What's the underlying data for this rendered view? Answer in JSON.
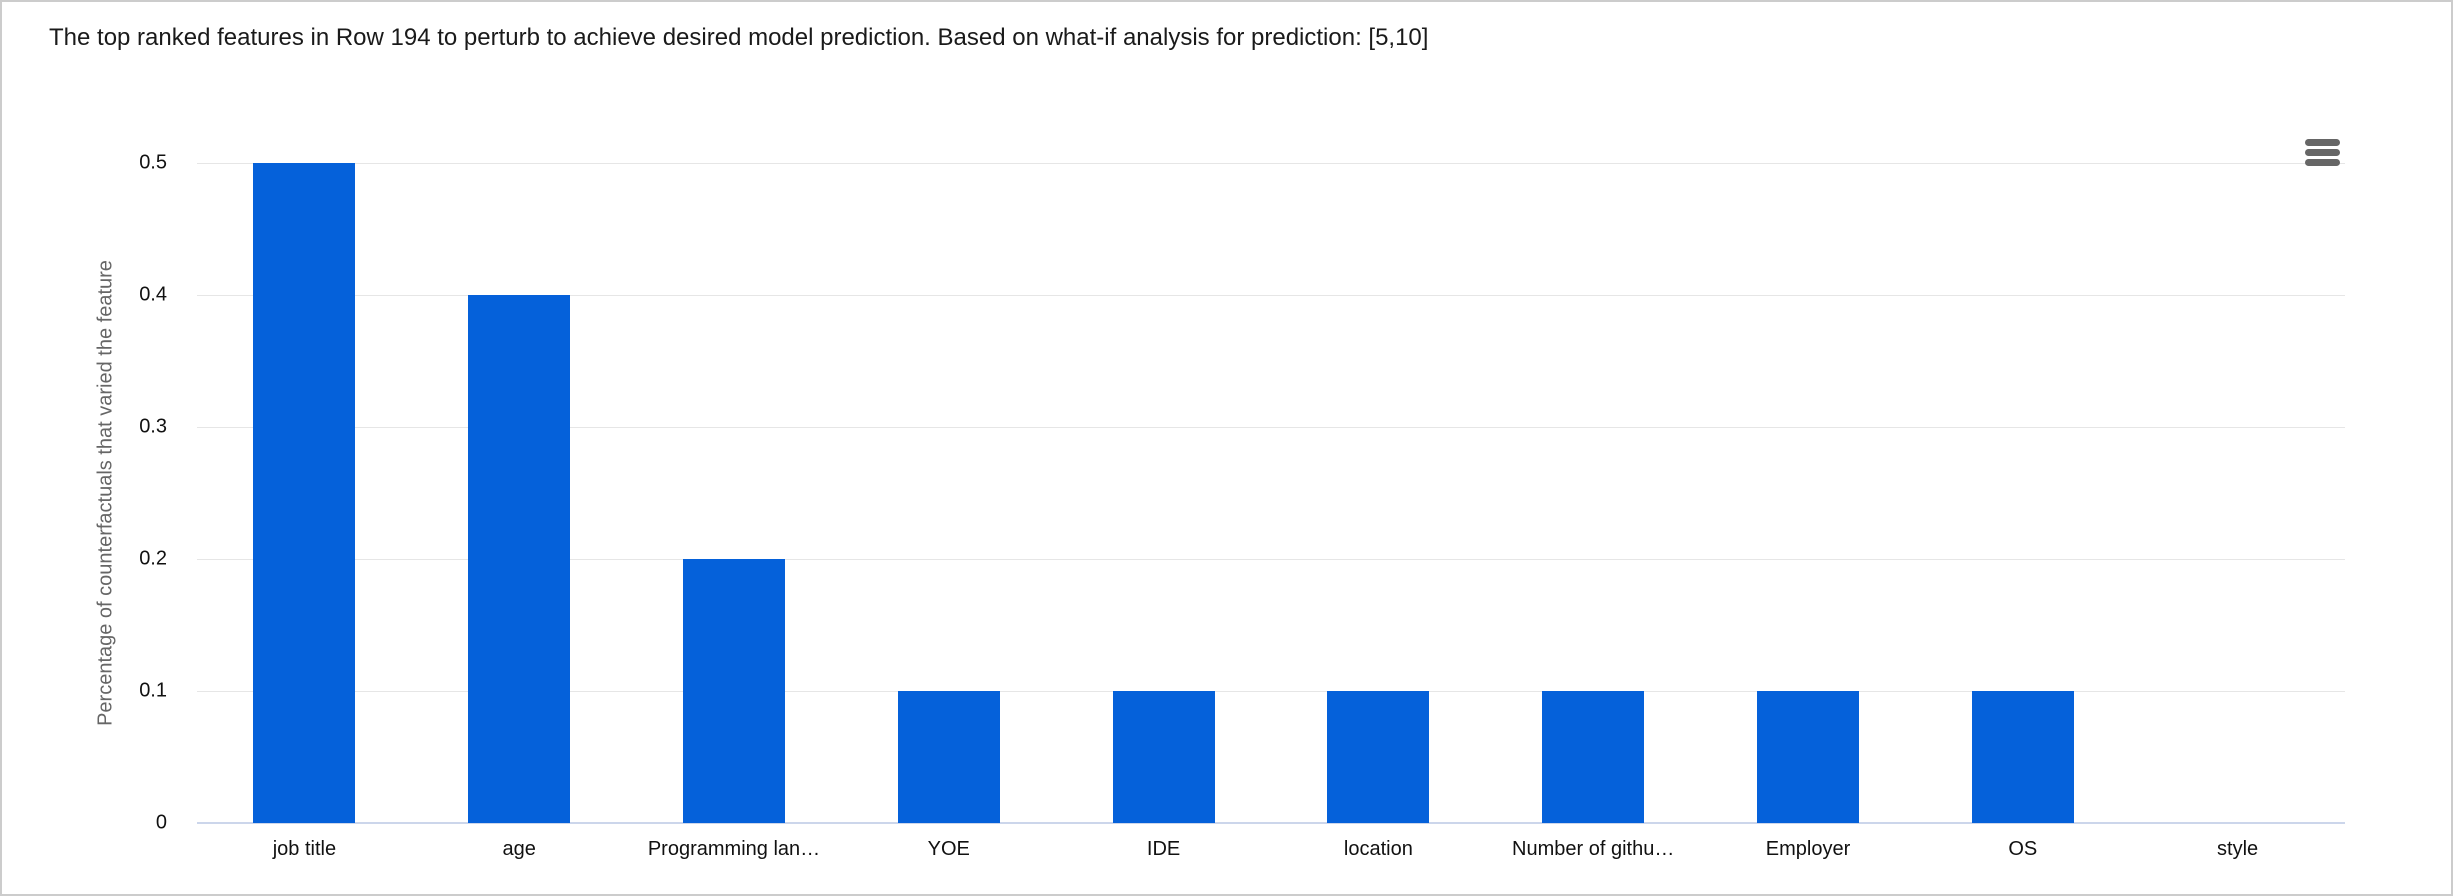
{
  "header": {
    "title": "The top ranked features in Row 194 to perturb to achieve desired model prediction. Based on what-if analysis for prediction: [5,10]"
  },
  "menu": {
    "icon": "hamburger-menu-icon"
  },
  "chart_data": {
    "type": "bar",
    "categories": [
      "job title",
      "age",
      "Programming lan…",
      "YOE",
      "IDE",
      "location",
      "Number of githu…",
      "Employer",
      "OS",
      "style"
    ],
    "values": [
      0.5,
      0.4,
      0.2,
      0.1,
      0.1,
      0.1,
      0.1,
      0.1,
      0.1,
      0
    ],
    "title": "",
    "xlabel": "",
    "ylabel": "Percentage of counterfactuals that varied the feature",
    "ylim": [
      0,
      0.5
    ],
    "yticks": [
      0,
      0.1,
      0.2,
      0.3,
      0.4,
      0.5
    ],
    "grid": true,
    "legend_position": "none",
    "bar_color": "#0561da",
    "grid_color": "#e6e6e6",
    "axis_line_color": "#ccd6eb",
    "label_color": "#111111",
    "ylabel_color": "#666666"
  }
}
